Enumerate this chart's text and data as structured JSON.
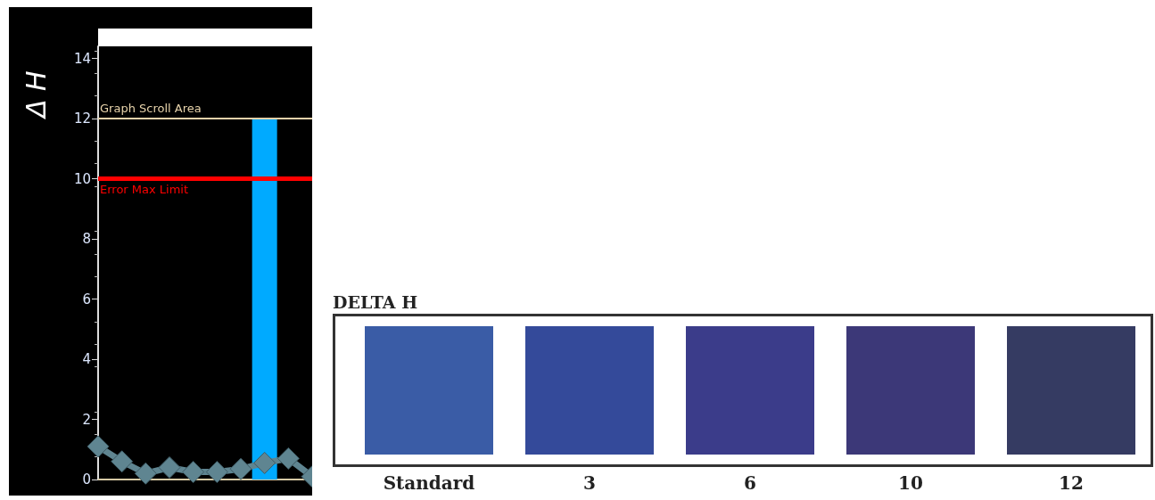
{
  "chart_data": [
    {
      "type": "line",
      "ylabel": "Δ H",
      "categories": [
        null,
        null,
        null,
        null,
        null,
        null,
        null,
        null,
        null,
        null
      ],
      "series": [
        {
          "type": "bar",
          "color": "#00aaff",
          "values": [
            null,
            null,
            null,
            null,
            null,
            null,
            null,
            12,
            null,
            null
          ]
        },
        {
          "type": "line",
          "color": "#5f8591",
          "values": [
            1.1,
            0.6,
            0.2,
            0.4,
            0.25,
            0.25,
            0.35,
            0.55,
            0.7,
            0.1
          ]
        }
      ],
      "ylim": [
        0,
        14.4
      ],
      "yticks": [
        0,
        2,
        4,
        6,
        8,
        10,
        12,
        14
      ],
      "grid": false,
      "marker": "diamond",
      "line_style": "solid",
      "tick_labels": "y",
      "ref_lines": [
        {
          "axis": "y",
          "value": 12,
          "label": "Graph Scroll Area",
          "color": "#e6d2aa"
        },
        {
          "axis": "y",
          "value": 10,
          "label": "Error Max Limit",
          "color": "#ff0000"
        }
      ]
    },
    {
      "type": "other",
      "title": "DELTA H",
      "categories": [
        "Standard",
        "3",
        "6",
        "10",
        "12"
      ],
      "colors": [
        "#3a5ca6",
        "#344a9a",
        "#3b3c8a",
        "#3c3878",
        "#353b62"
      ]
    }
  ]
}
